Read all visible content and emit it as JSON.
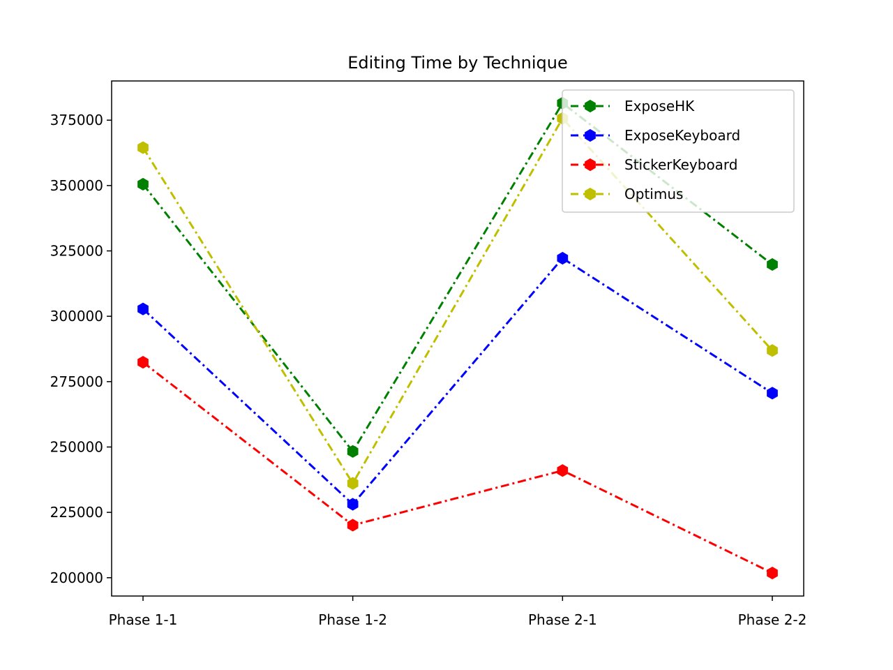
{
  "chart_data": {
    "type": "line",
    "title": "Editing Time by Technique",
    "xlabel": "",
    "ylabel": "",
    "categories": [
      "Phase 1-1",
      "Phase 1-2",
      "Phase 2-1",
      "Phase 2-2"
    ],
    "ylim": [
      193000,
      390000
    ],
    "yticks": [
      200000,
      225000,
      250000,
      275000,
      300000,
      325000,
      350000,
      375000
    ],
    "grid": false,
    "legend_position": "top-right",
    "series": [
      {
        "name": "ExposeHK",
        "color": "#008000",
        "values": [
          350500,
          248300,
          381500,
          319800
        ]
      },
      {
        "name": "ExposeKeyboard",
        "color": "#0000ff",
        "values": [
          302800,
          228100,
          322200,
          270600
        ]
      },
      {
        "name": "StickerKeyboard",
        "color": "#ff0000",
        "values": [
          282400,
          220100,
          241000,
          201800
        ]
      },
      {
        "name": "Optimus",
        "color": "#bfbf00",
        "values": [
          364500,
          236100,
          375700,
          286900
        ]
      }
    ]
  }
}
